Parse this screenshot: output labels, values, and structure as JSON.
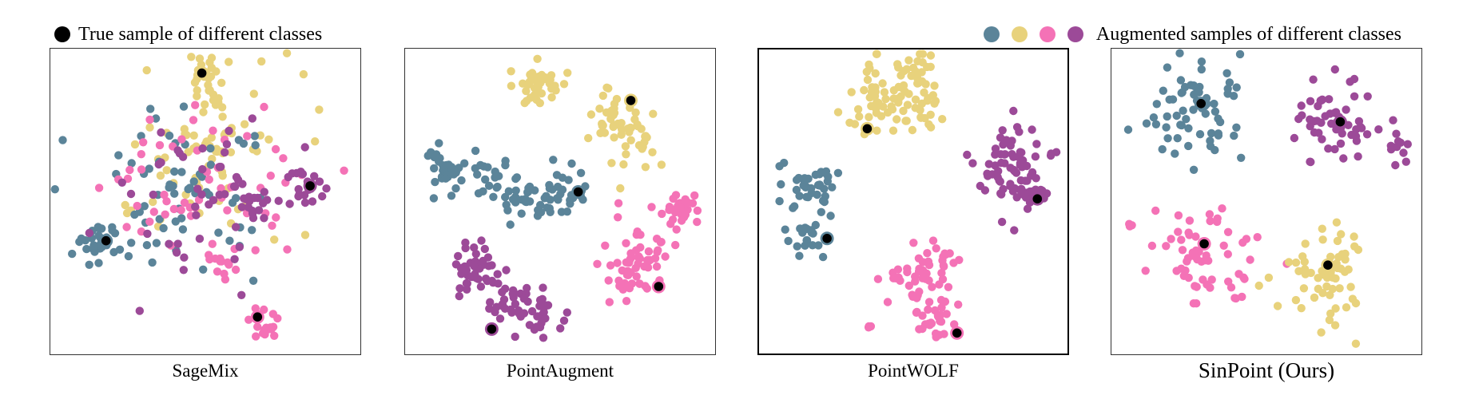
{
  "legend": {
    "true_label": "True sample of different classes",
    "augmented_label": "Augmented samples of different classes",
    "true_color": "#000000"
  },
  "colors": {
    "blue": "#5b8499",
    "yellow": "#e8d27c",
    "pink": "#f472b6",
    "purple": "#9c4a98"
  },
  "panels": [
    {
      "caption": "SageMix"
    },
    {
      "caption": "PointAugment"
    },
    {
      "caption": "PointWOLF"
    },
    {
      "caption": "SinPoint (Ours)"
    }
  ],
  "chart_data": {
    "type": "scatter",
    "title": "",
    "xlabel": "",
    "ylabel": "",
    "grid": false,
    "legend_position": "top",
    "classes": [
      "blue",
      "yellow",
      "pink",
      "purple"
    ],
    "panels": [
      {
        "name": "SageMix",
        "true_samples": {
          "yellow": [
            0.49,
            0.08
          ],
          "purple": [
            0.84,
            0.45
          ],
          "blue": [
            0.18,
            0.63
          ],
          "pink": [
            0.67,
            0.88
          ]
        },
        "series": [
          {
            "class": "yellow",
            "clusters": [
              {
                "center": [
                  0.5,
                  0.08
                ],
                "spread": 0.035,
                "n": 22
              },
              {
                "center": [
                  0.52,
                  0.32
                ],
                "spread": 0.15,
                "n": 60
              },
              {
                "center": [
                  0.52,
                  0.3
                ],
                "spread": 0.04,
                "n": 16
              }
            ]
          },
          {
            "class": "blue",
            "clusters": [
              {
                "center": [
                  0.16,
                  0.64
                ],
                "spread": 0.035,
                "n": 30
              },
              {
                "center": [
                  0.46,
                  0.48
                ],
                "spread": 0.14,
                "n": 60
              },
              {
                "center": [
                  0.04,
                  0.3
                ],
                "spread": 0.0,
                "n": 1
              }
            ]
          },
          {
            "class": "pink",
            "clusters": [
              {
                "center": [
                  0.46,
                  0.48
                ],
                "spread": 0.15,
                "n": 55
              },
              {
                "center": [
                  0.7,
                  0.9
                ],
                "spread": 0.03,
                "n": 16
              },
              {
                "center": [
                  0.55,
                  0.7
                ],
                "spread": 0.025,
                "n": 12
              },
              {
                "center": [
                  0.95,
                  0.4
                ],
                "spread": 0.0,
                "n": 1
              }
            ]
          },
          {
            "class": "purple",
            "clusters": [
              {
                "center": [
                  0.82,
                  0.45
                ],
                "spread": 0.03,
                "n": 22
              },
              {
                "center": [
                  0.66,
                  0.5
                ],
                "spread": 0.028,
                "n": 16
              },
              {
                "center": [
                  0.46,
                  0.48
                ],
                "spread": 0.14,
                "n": 45
              }
            ]
          }
        ]
      },
      {
        "name": "PointAugment",
        "true_samples": {
          "yellow": [
            0.73,
            0.17
          ],
          "blue": [
            0.56,
            0.47
          ],
          "pink": [
            0.82,
            0.78
          ],
          "purple": [
            0.28,
            0.92
          ]
        },
        "series": [
          {
            "class": "yellow",
            "clusters": [
              {
                "center": [
                  0.43,
                  0.12
                ],
                "spread": 0.035,
                "n": 40
              },
              {
                "center": [
                  0.65,
                  0.22
                ],
                "spread": 0.035,
                "n": 20
              },
              {
                "center": [
                  0.72,
                  0.28
                ],
                "spread": 0.06,
                "n": 35
              }
            ]
          },
          {
            "class": "blue",
            "clusters": [
              {
                "center": [
                  0.13,
                  0.4
                ],
                "spread": 0.04,
                "n": 35
              },
              {
                "center": [
                  0.27,
                  0.42
                ],
                "spread": 0.035,
                "n": 22
              },
              {
                "center": [
                  0.4,
                  0.5
                ],
                "spread": 0.035,
                "n": 25
              },
              {
                "center": [
                  0.52,
                  0.47
                ],
                "spread": 0.035,
                "n": 30
              }
            ]
          },
          {
            "class": "pink",
            "clusters": [
              {
                "center": [
                  0.9,
                  0.53
                ],
                "spread": 0.03,
                "n": 35
              },
              {
                "center": [
                  0.75,
                  0.66
                ],
                "spread": 0.06,
                "n": 45
              },
              {
                "center": [
                  0.72,
                  0.73
                ],
                "spread": 0.03,
                "n": 15
              }
            ]
          },
          {
            "class": "purple",
            "clusters": [
              {
                "center": [
                  0.21,
                  0.72
                ],
                "spread": 0.035,
                "n": 40
              },
              {
                "center": [
                  0.35,
                  0.83
                ],
                "spread": 0.055,
                "n": 35
              },
              {
                "center": [
                  0.45,
                  0.87
                ],
                "spread": 0.035,
                "n": 20
              }
            ]
          }
        ]
      },
      {
        "name": "PointWOLF",
        "true_samples": {
          "yellow": [
            0.35,
            0.26
          ],
          "purple": [
            0.9,
            0.49
          ],
          "blue": [
            0.22,
            0.62
          ],
          "pink": [
            0.64,
            0.93
          ]
        },
        "series": [
          {
            "class": "yellow",
            "clusters": [
              {
                "center": [
                  0.4,
                  0.16
                ],
                "spread": 0.06,
                "n": 50
              },
              {
                "center": [
                  0.5,
                  0.1
                ],
                "spread": 0.05,
                "n": 30
              },
              {
                "center": [
                  0.55,
                  0.2
                ],
                "spread": 0.04,
                "n": 15
              }
            ]
          },
          {
            "class": "purple",
            "clusters": [
              {
                "center": [
                  0.8,
                  0.4
                ],
                "spread": 0.05,
                "n": 40
              },
              {
                "center": [
                  0.87,
                  0.48
                ],
                "spread": 0.04,
                "n": 25
              },
              {
                "center": [
                  0.82,
                  0.32
                ],
                "spread": 0.035,
                "n": 15
              },
              {
                "center": [
                  0.96,
                  0.35
                ],
                "spread": 0.01,
                "n": 3
              }
            ]
          },
          {
            "class": "blue",
            "clusters": [
              {
                "center": [
                  0.14,
                  0.45
                ],
                "spread": 0.045,
                "n": 25
              },
              {
                "center": [
                  0.16,
                  0.62
                ],
                "spread": 0.035,
                "n": 20
              },
              {
                "center": [
                  0.22,
                  0.45
                ],
                "spread": 0.035,
                "n": 15
              }
            ]
          },
          {
            "class": "pink",
            "clusters": [
              {
                "center": [
                  0.52,
                  0.75
                ],
                "spread": 0.05,
                "n": 40
              },
              {
                "center": [
                  0.57,
                  0.88
                ],
                "spread": 0.04,
                "n": 25
              },
              {
                "center": [
                  0.6,
                  0.68
                ],
                "spread": 0.035,
                "n": 12
              },
              {
                "center": [
                  0.35,
                  0.9
                ],
                "spread": 0.01,
                "n": 3
              }
            ]
          }
        ]
      },
      {
        "name": "SinPoint (Ours)",
        "true_samples": {
          "blue": [
            0.29,
            0.18
          ],
          "purple": [
            0.74,
            0.24
          ],
          "pink": [
            0.3,
            0.64
          ],
          "yellow": [
            0.7,
            0.71
          ]
        },
        "series": [
          {
            "class": "blue",
            "clusters": [
              {
                "center": [
                  0.28,
                  0.2
                ],
                "spread": 0.075,
                "n": 65
              }
            ]
          },
          {
            "class": "purple",
            "clusters": [
              {
                "center": [
                  0.72,
                  0.24
                ],
                "spread": 0.07,
                "n": 55
              },
              {
                "center": [
                  0.92,
                  0.32
                ],
                "spread": 0.025,
                "n": 10
              }
            ]
          },
          {
            "class": "pink",
            "clusters": [
              {
                "center": [
                  0.3,
                  0.68
                ],
                "spread": 0.075,
                "n": 60
              },
              {
                "center": [
                  0.05,
                  0.58
                ],
                "spread": 0.01,
                "n": 3
              }
            ]
          },
          {
            "class": "yellow",
            "clusters": [
              {
                "center": [
                  0.7,
                  0.72
                ],
                "spread": 0.075,
                "n": 60
              }
            ]
          }
        ]
      }
    ]
  }
}
